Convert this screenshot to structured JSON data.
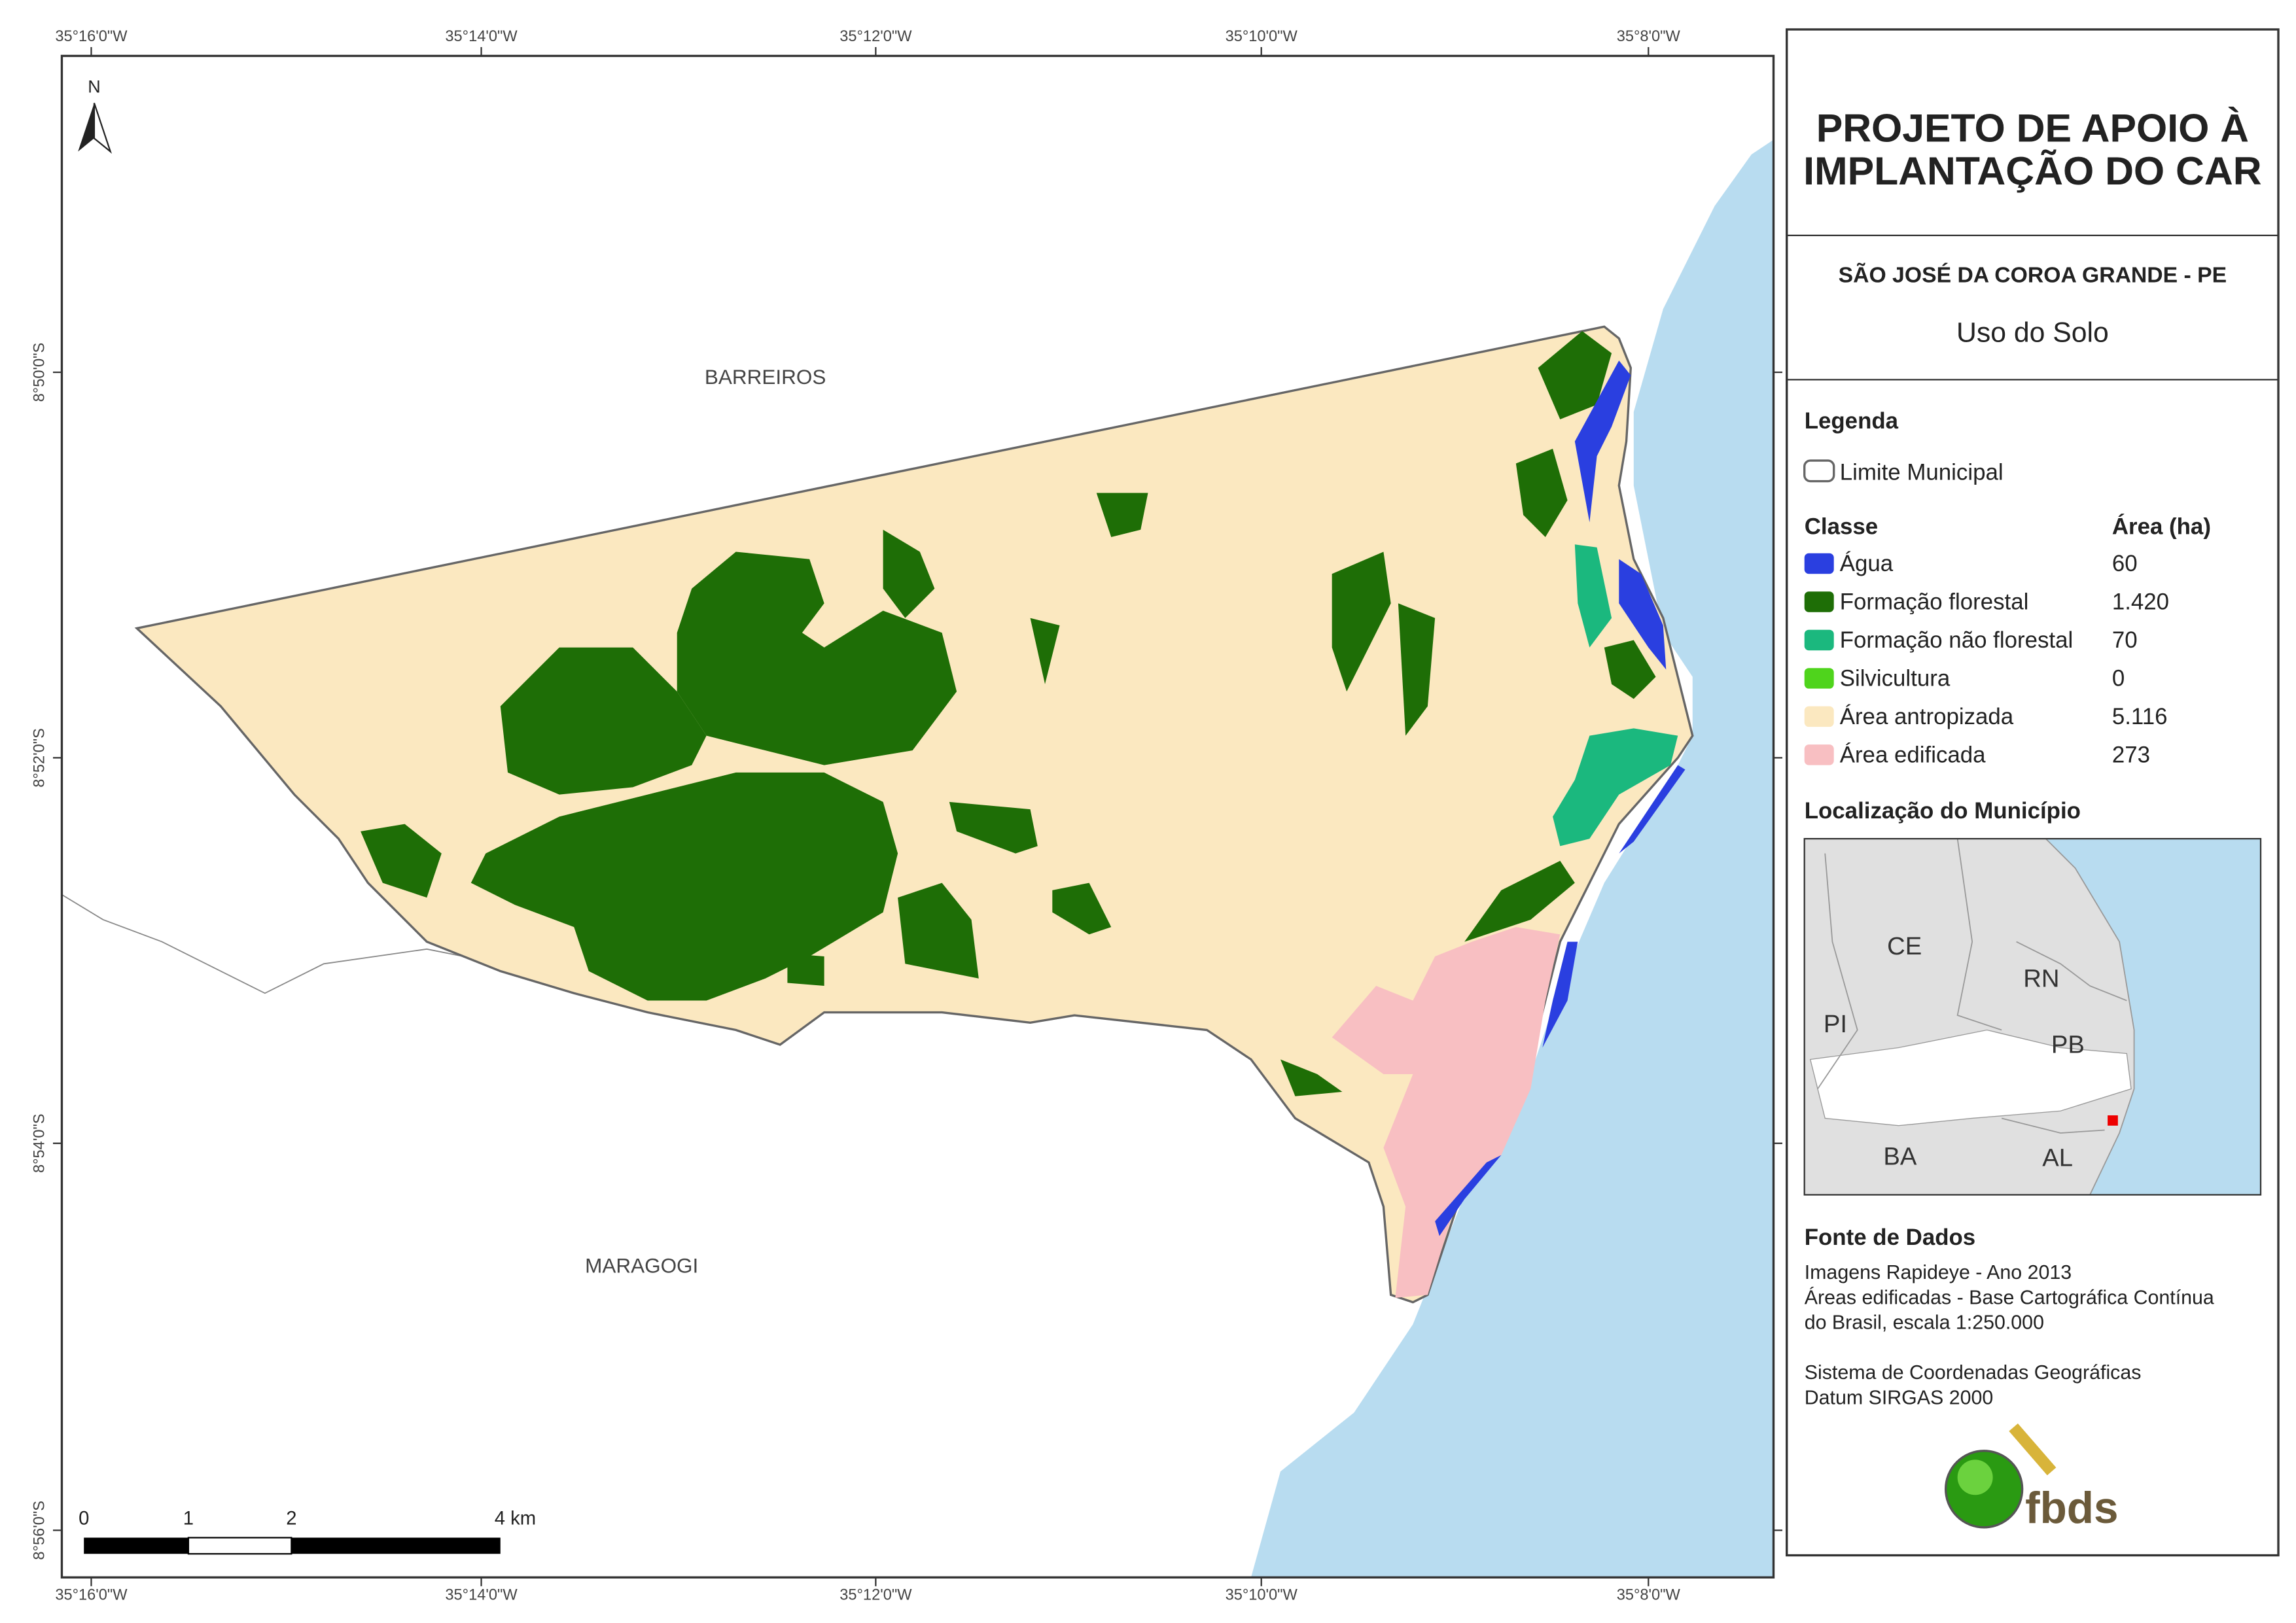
{
  "map": {
    "north": "N",
    "places": [
      "BARREIROS",
      "MARAGOGI"
    ],
    "lon_labels": [
      "35°16'0\"W",
      "35°14'0\"W",
      "35°12'0\"W",
      "35°10'0\"W",
      "35°8'0\"W"
    ],
    "lat_labels": [
      "8°50'0\"S",
      "8°52'0\"S",
      "8°54'0\"S",
      "8°56'0\"S"
    ],
    "scale_labels": [
      "0",
      "1",
      "2",
      "4 km"
    ]
  },
  "panel": {
    "title_lines": [
      "PROJETO DE APOIO À",
      "IMPLANTAÇÃO DO CAR"
    ],
    "municipality": "SÃO JOSÉ DA COROA GRANDE - PE",
    "subtitle": "Uso do Solo",
    "legend": {
      "heading": "Legenda",
      "boundary": "Limite Municipal",
      "class_heading": "Classe",
      "area_heading": "Área (ha)",
      "classes": [
        {
          "name": "Água",
          "area": "60",
          "color": "#2a3fe0"
        },
        {
          "name": "Formação florestal",
          "area": "1.420",
          "color": "#1e6e06"
        },
        {
          "name": "Formação não florestal",
          "area": "70",
          "color": "#1bb87e"
        },
        {
          "name": "Silvicultura",
          "area": "0",
          "color": "#4fd41c"
        },
        {
          "name": "Área antropizada",
          "area": "5.116",
          "color": "#fbe8c0"
        },
        {
          "name": "Área edificada",
          "area": "273",
          "color": "#f8bfc2"
        }
      ]
    },
    "location": {
      "heading": "Localização do Município",
      "states": [
        "CE",
        "RN",
        "PI",
        "PB",
        "BA",
        "AL"
      ]
    },
    "sources": {
      "heading": "Fonte de Dados",
      "lines": [
        "Imagens Rapideye - Ano 2013",
        "Áreas edificadas - Base Cartográfica Contínua",
        "do Brasil, escala 1:250.000",
        "Sistema de Coordenadas Geográficas",
        "Datum SIRGAS 2000"
      ]
    },
    "logo": "fbds"
  }
}
